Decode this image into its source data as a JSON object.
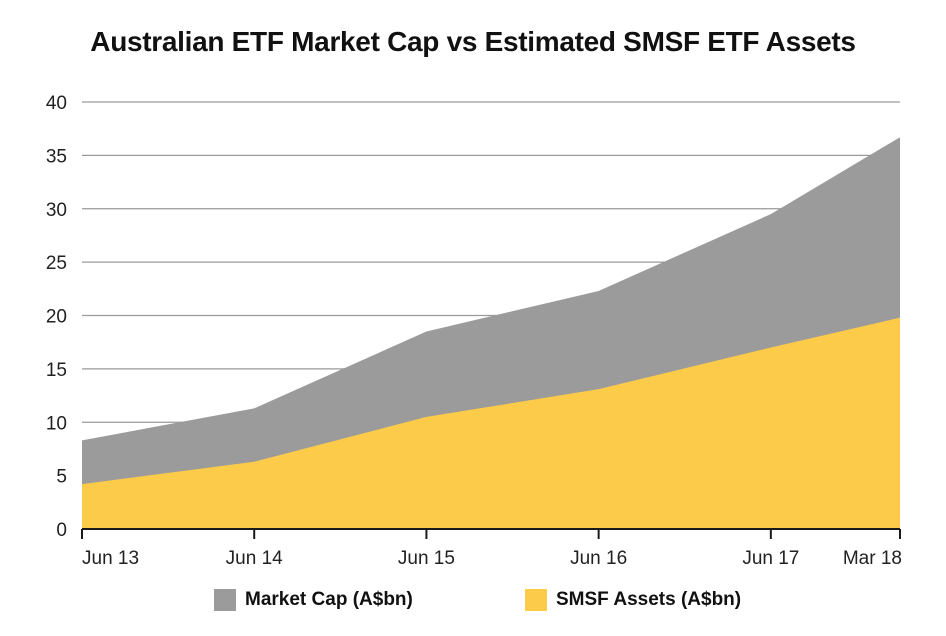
{
  "chart_data": {
    "type": "area",
    "title": "Australian ETF Market Cap vs Estimated SMSF ETF Assets",
    "xlabel": "",
    "ylabel": "",
    "categories": [
      "Jun 13",
      "Jun 14",
      "Jun 15",
      "Jun 16",
      "Jun 17",
      "Mar 18"
    ],
    "x_positions": [
      0,
      1,
      2,
      3,
      4,
      4.75
    ],
    "ylim": [
      0,
      40
    ],
    "yticks": [
      0,
      5,
      10,
      15,
      20,
      25,
      30,
      35,
      40
    ],
    "grid": true,
    "legend_position": "bottom",
    "series": [
      {
        "name": "Market Cap (A$bn)",
        "color": "#9b9b9b",
        "values": [
          8.3,
          11.3,
          18.5,
          22.3,
          29.5,
          36.7
        ]
      },
      {
        "name": "SMSF Assets (A$bn)",
        "color": "#fdcb4a",
        "values": [
          4.2,
          6.3,
          10.5,
          13.1,
          17.0,
          19.8
        ]
      }
    ]
  }
}
